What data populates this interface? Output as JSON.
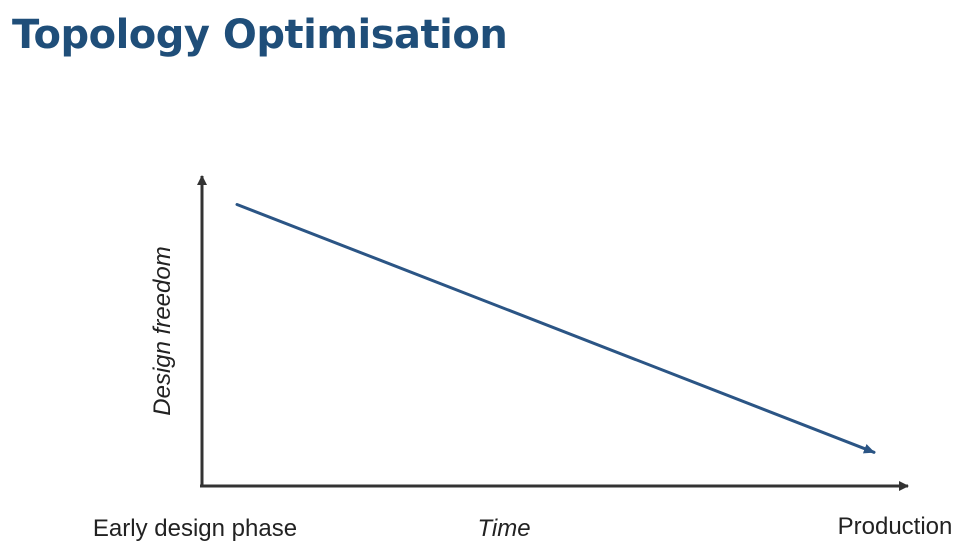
{
  "slide": {
    "title": "Topology Optimisation"
  },
  "chart_data": {
    "type": "line",
    "title": "Topology Optimisation",
    "xlabel": "Time",
    "ylabel": "Design freedom",
    "x_start_label": "Early design phase",
    "x_end_label": "Production",
    "x": [
      0.05,
      0.96
    ],
    "series": [
      {
        "values": [
          0.92,
          0.11
        ]
      }
    ],
    "xlim": [
      0,
      1
    ],
    "ylim": [
      0,
      1
    ],
    "grid": false,
    "legend": "none",
    "colors": {
      "line": "#2b5585",
      "axis": "#333333",
      "title": "#1f4e79"
    }
  }
}
